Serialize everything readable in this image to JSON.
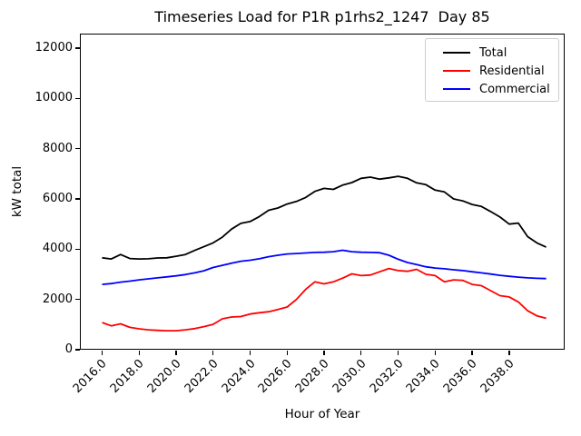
{
  "chart_data": {
    "type": "line",
    "title": "Timeseries Load for P1R p1rhs2_1247  Day 85",
    "xlabel": "Hour of Year",
    "ylabel": "kW total",
    "grid": false,
    "legend_position": "upper right",
    "xlim": [
      2014.8,
      2041.0
    ],
    "ylim": [
      0,
      12580
    ],
    "x_ticks": {
      "values": [
        2016,
        2018,
        2020,
        2022,
        2024,
        2026,
        2028,
        2030,
        2032,
        2034,
        2036,
        2038
      ],
      "labels": [
        "2016.0",
        "2018.0",
        "2020.0",
        "2022.0",
        "2024.0",
        "2026.0",
        "2028.0",
        "2030.0",
        "2032.0",
        "2034.0",
        "2036.0",
        "2038.0"
      ]
    },
    "y_ticks": {
      "values": [
        0,
        2000,
        4000,
        6000,
        8000,
        10000,
        12000
      ],
      "labels": [
        "0",
        "2000",
        "4000",
        "6000",
        "8000",
        "10000",
        "12000"
      ]
    },
    "x": [
      2016,
      2016.5,
      2017,
      2017.5,
      2018,
      2018.5,
      2019,
      2019.5,
      2020,
      2020.5,
      2021,
      2021.5,
      2022,
      2022.5,
      2023,
      2023.5,
      2024,
      2024.5,
      2025,
      2025.5,
      2026,
      2026.5,
      2027,
      2027.5,
      2028,
      2028.5,
      2029,
      2029.5,
      2030,
      2030.5,
      2031,
      2031.5,
      2032,
      2032.5,
      2033,
      2033.5,
      2034,
      2034.5,
      2035,
      2035.5,
      2036,
      2036.5,
      2037,
      2037.5,
      2038,
      2038.5,
      2039,
      2039.5,
      2040
    ],
    "series": [
      {
        "name": "Total",
        "color": "#000000",
        "values": [
          3660,
          3610,
          3790,
          3630,
          3610,
          3620,
          3650,
          3660,
          3720,
          3790,
          3950,
          4100,
          4250,
          4480,
          4800,
          5030,
          5100,
          5300,
          5550,
          5640,
          5800,
          5900,
          6060,
          6300,
          6420,
          6380,
          6550,
          6650,
          6820,
          6870,
          6790,
          6840,
          6900,
          6820,
          6640,
          6570,
          6350,
          6280,
          6000,
          5920,
          5780,
          5700,
          5500,
          5280,
          5000,
          5040,
          4500,
          4250,
          4080
        ]
      },
      {
        "name": "Residential",
        "color": "#ff0000",
        "values": [
          1080,
          950,
          1030,
          890,
          830,
          790,
          770,
          755,
          755,
          790,
          840,
          920,
          1010,
          1230,
          1300,
          1320,
          1420,
          1470,
          1510,
          1600,
          1700,
          2000,
          2400,
          2700,
          2620,
          2700,
          2850,
          3020,
          2950,
          2970,
          3100,
          3230,
          3150,
          3120,
          3200,
          3000,
          2950,
          2700,
          2780,
          2760,
          2600,
          2550,
          2350,
          2150,
          2100,
          1900,
          1550,
          1350,
          1250
        ]
      },
      {
        "name": "Commercial",
        "color": "#0000ff",
        "values": [
          2600,
          2630,
          2690,
          2730,
          2780,
          2820,
          2860,
          2900,
          2940,
          2990,
          3060,
          3140,
          3270,
          3360,
          3440,
          3520,
          3560,
          3620,
          3700,
          3760,
          3810,
          3830,
          3850,
          3870,
          3880,
          3900,
          3960,
          3900,
          3880,
          3870,
          3860,
          3760,
          3600,
          3470,
          3390,
          3300,
          3250,
          3220,
          3180,
          3150,
          3100,
          3060,
          3010,
          2960,
          2920,
          2890,
          2860,
          2840,
          2830
        ]
      }
    ]
  }
}
